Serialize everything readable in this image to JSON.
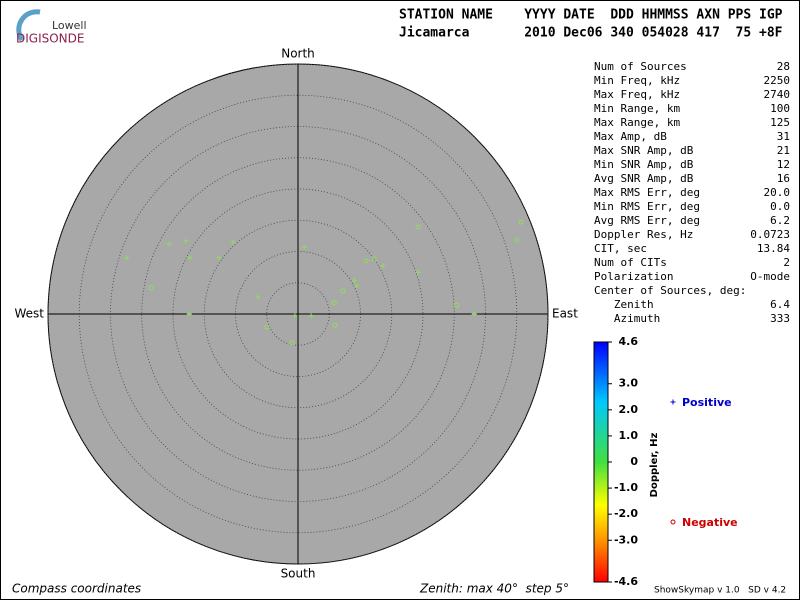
{
  "logo": {
    "top": "Lowell",
    "bottom": "DIGISONDE"
  },
  "header": {
    "line1": "STATION NAME    YYYY DATE  DDD HHMMSS AXN PPS IGP",
    "line2": "Jicamarca       2010 Dec06 340 054028 417  75 +8F"
  },
  "stats": {
    "rows": [
      [
        "Num of Sources",
        "28"
      ],
      [
        "Min Freq, kHz",
        "2250"
      ],
      [
        "Max Freq, kHz",
        "2740"
      ],
      [
        "Min Range, km",
        "100"
      ],
      [
        "Max Range, km",
        "125"
      ],
      [
        "Max Amp, dB",
        "31"
      ],
      [
        "Max SNR Amp, dB",
        "21"
      ],
      [
        "Min SNR Amp, dB",
        "12"
      ],
      [
        "Avg SNR Amp, dB",
        "16"
      ],
      [
        "Max RMS Err, deg",
        "20.0"
      ],
      [
        "Min RMS Err, deg",
        "0.0"
      ],
      [
        "Avg RMS Err, deg",
        "6.2"
      ],
      [
        "Doppler Res, Hz",
        "0.0723"
      ],
      [
        "CIT, sec",
        "13.84"
      ],
      [
        "Num of CITs",
        "2"
      ],
      [
        "Polarization",
        "O-mode"
      ],
      [
        "Center of Sources, deg:",
        ""
      ],
      [
        "   Zenith",
        "6.4"
      ],
      [
        "   Azimuth",
        "333"
      ]
    ]
  },
  "footer": {
    "left": "Compass coordinates",
    "middle": "Zenith: max 40°  step 5°",
    "right": "ShowSkymap v 1.0   SD v 4.2"
  },
  "chart_data": {
    "type": "skymap",
    "directions": {
      "north": "North",
      "south": "South",
      "east": "East",
      "west": "West"
    },
    "rlim": [
      0,
      40
    ],
    "rticks": [
      5,
      10,
      15,
      20,
      25,
      30,
      35,
      40
    ],
    "marker_color": "#8ede5a",
    "series": [
      {
        "name": "Positive",
        "color": "#0000cc",
        "marker": "plus",
        "x": [
          -27.4,
          -20.6,
          -17.9,
          -17.3,
          -17.4,
          -12.6,
          -10.4,
          -6.4,
          1.0,
          -0.5,
          2.1,
          9.0,
          9.4,
          13.6,
          19.2,
          28.2
        ],
        "values": [
          9.0,
          11.2,
          11.7,
          9.0,
          0,
          9.0,
          11.5,
          2.7,
          10.7,
          -0.3,
          -0.3,
          5.4,
          4.5,
          7.7,
          6.7,
          0
        ]
      },
      {
        "name": "Negative",
        "color": "#cc0000",
        "marker": "circle",
        "x": [
          -23.5,
          -5.0,
          -1.0,
          5.8,
          5.9,
          7.2,
          10.9,
          12.2,
          19.2,
          25.4,
          35.0,
          35.7
        ],
        "values": [
          4.2,
          -2.1,
          -4.6,
          1.8,
          -1.8,
          3.7,
          8.5,
          8.8,
          13.9,
          1.4,
          11.8,
          14.7
        ]
      }
    ],
    "colorbar": {
      "label": "Doppler, Hz",
      "lim": [
        -4.6,
        4.6
      ],
      "ticks": [
        4.6,
        {
          "value": 3,
          "label": "3.0"
        },
        {
          "value": 2,
          "label": "2.0"
        },
        {
          "value": 1,
          "label": "1.0"
        },
        0,
        {
          "value": -1,
          "label": "-1.0"
        },
        {
          "value": -2,
          "label": "-2.0"
        },
        {
          "value": -3,
          "label": "-3.0"
        },
        -4.6
      ]
    }
  }
}
